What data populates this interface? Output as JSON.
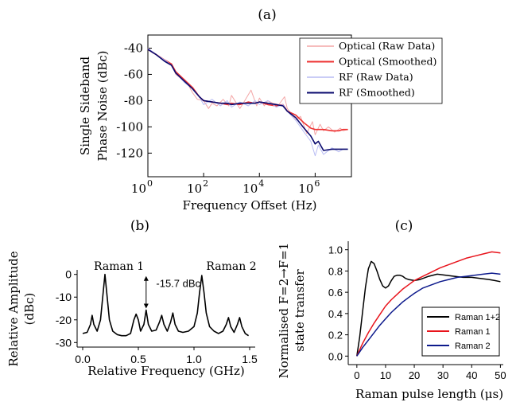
{
  "chart_data": [
    {
      "panel_label": "(a)",
      "type": "line",
      "xlabel": "Frequency Offset (Hz)",
      "ylabel_lines": [
        "Single Sideband",
        "Phase Noise  (dBc)"
      ],
      "x_scale": "log",
      "xlim": [
        1,
        20000000
      ],
      "ylim": [
        -138,
        -30
      ],
      "x_ticks": [
        1,
        100,
        10000,
        1000000
      ],
      "x_tick_labels": [
        [
          "10",
          "0"
        ],
        [
          "10",
          "2"
        ],
        [
          "10",
          "4"
        ],
        [
          "10",
          "6"
        ]
      ],
      "y_ticks": [
        -40,
        -60,
        -80,
        -100,
        -120
      ],
      "legend_position": "top-right",
      "series": [
        {
          "name": "Optical (Raw Data)",
          "color": "#f4a6a6",
          "x": [
            1,
            2,
            4,
            7,
            10,
            15,
            25,
            40,
            60,
            100,
            150,
            200,
            300,
            500,
            800,
            1000,
            1500,
            2000,
            3000,
            5000,
            8000,
            10000,
            15000,
            20000,
            30000,
            50000,
            80000,
            100000,
            150000,
            200000,
            300000,
            500000,
            800000,
            1000000,
            1500000,
            2000000,
            3000000,
            5000000,
            8000000,
            10000000,
            15000000
          ],
          "y": [
            -40,
            -45,
            -50,
            -52,
            -60,
            -63,
            -66,
            -74,
            -79,
            -80,
            -86,
            -82,
            -84,
            -79,
            -84,
            -76,
            -82,
            -86,
            -80,
            -72,
            -84,
            -78,
            -84,
            -80,
            -82,
            -83,
            -77,
            -86,
            -91,
            -95,
            -92,
            -105,
            -96,
            -106,
            -98,
            -103,
            -100,
            -104,
            -101,
            -103,
            -102
          ]
        },
        {
          "name": "Optical (Smoothed)",
          "color": "#ee3333",
          "x": [
            1,
            2,
            4,
            7,
            10,
            20,
            40,
            70,
            100,
            200,
            400,
            700,
            1000,
            2000,
            4000,
            7000,
            10000,
            20000,
            40000,
            70000,
            100000,
            200000,
            400000,
            700000,
            1000000,
            2000000,
            4000000,
            7000000,
            10000000,
            15000000
          ],
          "y": [
            -41,
            -45,
            -49,
            -52,
            -58,
            -64,
            -70,
            -77,
            -80,
            -81,
            -82,
            -83,
            -82,
            -83,
            -81,
            -82,
            -81,
            -83,
            -84,
            -83,
            -88,
            -91,
            -97,
            -101,
            -102,
            -102,
            -103,
            -103,
            -102,
            -102
          ]
        },
        {
          "name": "RF (Raw Data)",
          "color": "#b8bcf4",
          "x": [
            1,
            2,
            4,
            7,
            10,
            20,
            40,
            70,
            100,
            200,
            400,
            700,
            1000,
            2000,
            4000,
            7000,
            10000,
            20000,
            40000,
            70000,
            100000,
            200000,
            400000,
            700000,
            1000000,
            1300000,
            2000000,
            4000000,
            7000000,
            10000000,
            15000000
          ],
          "y": [
            -40,
            -45,
            -49,
            -53,
            -59,
            -66,
            -71,
            -77,
            -83,
            -79,
            -84,
            -80,
            -85,
            -81,
            -84,
            -80,
            -83,
            -80,
            -85,
            -83,
            -88,
            -95,
            -104,
            -111,
            -122,
            -114,
            -121,
            -116,
            -119,
            -117,
            -117
          ]
        },
        {
          "name": "RF (Smoothed)",
          "color": "#0a0a6e",
          "x": [
            1,
            2,
            4,
            7,
            10,
            20,
            40,
            70,
            100,
            200,
            400,
            700,
            1000,
            2000,
            4000,
            7000,
            10000,
            20000,
            40000,
            70000,
            100000,
            200000,
            400000,
            700000,
            1000000,
            1300000,
            2000000,
            4000000,
            7000000,
            10000000,
            15000000
          ],
          "y": [
            -41,
            -45,
            -50,
            -53,
            -59,
            -65,
            -71,
            -77,
            -80,
            -81,
            -82,
            -82,
            -83,
            -82,
            -82,
            -82,
            -81,
            -82,
            -83,
            -84,
            -88,
            -93,
            -101,
            -107,
            -113,
            -111,
            -118,
            -117,
            -117,
            -117,
            -117
          ]
        }
      ]
    },
    {
      "panel_label": "(b)",
      "type": "line",
      "xlabel": "Relative Frequency (GHz)",
      "ylabel_lines": [
        "Relative Amplitude",
        "(dBc)"
      ],
      "xlim": [
        -0.05,
        1.55
      ],
      "ylim": [
        -32,
        2
      ],
      "x_ticks": [
        0.0,
        0.5,
        1.0,
        1.5
      ],
      "x_tick_labels": [
        "0.0",
        "0.5",
        "1.0",
        "1.5"
      ],
      "y_ticks": [
        0,
        -10,
        -20,
        -30
      ],
      "y_tick_labels": [
        "0",
        "-10",
        "-20",
        "-30"
      ],
      "series": [
        {
          "name": "",
          "color": "#000000",
          "x": [
            0.0,
            0.04,
            0.07,
            0.085,
            0.1,
            0.13,
            0.16,
            0.18,
            0.2,
            0.22,
            0.24,
            0.27,
            0.31,
            0.35,
            0.39,
            0.43,
            0.46,
            0.48,
            0.5,
            0.52,
            0.55,
            0.57,
            0.59,
            0.62,
            0.66,
            0.69,
            0.71,
            0.73,
            0.76,
            0.79,
            0.81,
            0.83,
            0.86,
            0.9,
            0.95,
            1.0,
            1.03,
            1.05,
            1.07,
            1.09,
            1.11,
            1.14,
            1.18,
            1.22,
            1.26,
            1.29,
            1.31,
            1.33,
            1.36,
            1.39,
            1.41,
            1.43,
            1.46,
            1.49
          ],
          "y": [
            -26,
            -25.5,
            -22,
            -18,
            -22,
            -25,
            -20,
            -10,
            0,
            -10,
            -20,
            -25,
            -26.5,
            -27,
            -27,
            -26,
            -20,
            -17.5,
            -20,
            -25,
            -22,
            -15.7,
            -22,
            -25,
            -24.5,
            -21,
            -18,
            -22,
            -25,
            -21,
            -17,
            -22,
            -25,
            -25.5,
            -25,
            -23,
            -17,
            -8,
            -0.5,
            -8,
            -17,
            -23,
            -25,
            -26,
            -25,
            -22,
            -19,
            -23,
            -25.5,
            -22,
            -19,
            -23,
            -26,
            -27
          ]
        }
      ],
      "annotations": [
        {
          "text": "Raman 1",
          "x": 0.1,
          "y": 2
        },
        {
          "text": "Raman 2",
          "x": 1.11,
          "y": 2
        },
        {
          "text": "-15.7 dBc",
          "x": 0.66,
          "y": -5.5
        }
      ],
      "arrow": {
        "x": 0.57,
        "y_from": 0,
        "y_to": -15.7
      }
    },
    {
      "panel_label": "(c)",
      "type": "line",
      "xlabel": "Raman pulse length (μs)",
      "ylabel_lines": [
        "Normalised F=2→F=1",
        "state transfer"
      ],
      "xlim": [
        -3,
        51
      ],
      "ylim": [
        -0.08,
        1.08
      ],
      "x_ticks": [
        0,
        10,
        20,
        30,
        40,
        50
      ],
      "x_tick_labels": [
        "0",
        "10",
        "20",
        "30",
        "40",
        "50"
      ],
      "y_ticks": [
        0.0,
        0.2,
        0.4,
        0.6,
        0.8,
        1.0
      ],
      "y_tick_labels": [
        "0.0",
        "0.2",
        "0.4",
        "0.6",
        "0.8",
        "1.0"
      ],
      "legend_position": "bottom-right",
      "series": [
        {
          "name": "Raman 1+2",
          "color": "#000000",
          "x": [
            0,
            1,
            2,
            3,
            4,
            5,
            6,
            7,
            8,
            9,
            10,
            11,
            12,
            13,
            14,
            15,
            16,
            17,
            18,
            20,
            22,
            25,
            28,
            31,
            34,
            37,
            40,
            43,
            46,
            48,
            50
          ],
          "y": [
            0.0,
            0.18,
            0.42,
            0.65,
            0.82,
            0.89,
            0.87,
            0.8,
            0.72,
            0.66,
            0.64,
            0.66,
            0.71,
            0.75,
            0.76,
            0.76,
            0.75,
            0.73,
            0.72,
            0.71,
            0.72,
            0.75,
            0.77,
            0.76,
            0.75,
            0.74,
            0.74,
            0.73,
            0.72,
            0.71,
            0.7
          ]
        },
        {
          "name": "Raman 1",
          "color": "#e8141c",
          "x": [
            0,
            2,
            4,
            6,
            8,
            10,
            12,
            14,
            16,
            18,
            20,
            23,
            26,
            29,
            32,
            35,
            38,
            41,
            44,
            47,
            50
          ],
          "y": [
            0.0,
            0.12,
            0.22,
            0.31,
            0.39,
            0.47,
            0.53,
            0.58,
            0.63,
            0.67,
            0.71,
            0.75,
            0.79,
            0.83,
            0.86,
            0.89,
            0.92,
            0.94,
            0.96,
            0.98,
            0.97
          ]
        },
        {
          "name": "Raman 2",
          "color": "#0d1a8c",
          "x": [
            0,
            2,
            4,
            6,
            8,
            10,
            12,
            14,
            16,
            18,
            20,
            23,
            26,
            29,
            32,
            35,
            38,
            41,
            44,
            47,
            50
          ],
          "y": [
            0.0,
            0.08,
            0.15,
            0.22,
            0.29,
            0.35,
            0.41,
            0.46,
            0.51,
            0.55,
            0.59,
            0.64,
            0.67,
            0.7,
            0.72,
            0.74,
            0.75,
            0.76,
            0.77,
            0.78,
            0.77
          ]
        }
      ]
    }
  ]
}
